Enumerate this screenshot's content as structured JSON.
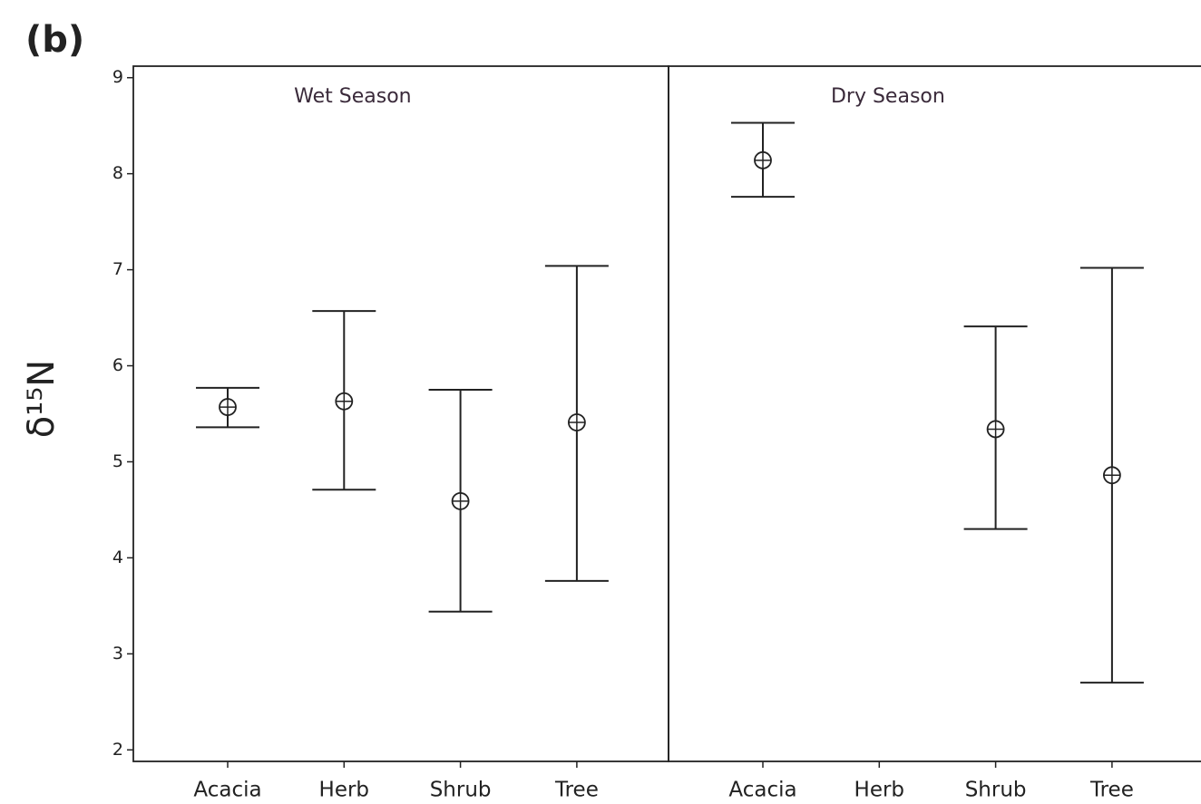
{
  "chart_data": {
    "type": "errorbar",
    "title": "(b)",
    "ylabel": "δ¹⁵N",
    "ylim": [
      1.88,
      9.12
    ],
    "yticks": [
      2,
      3,
      4,
      5,
      6,
      7,
      8,
      9
    ],
    "color": "#222222",
    "panels": [
      {
        "title": "Wet Season",
        "categories": [
          "Acacia",
          "Herb",
          "Shrub",
          "Tree"
        ],
        "values": [
          5.57,
          5.63,
          4.59,
          5.41
        ],
        "lower": [
          5.36,
          4.71,
          3.44,
          3.76
        ],
        "upper": [
          5.77,
          6.57,
          5.75,
          7.04
        ]
      },
      {
        "title": "Dry Season",
        "categories": [
          "Acacia",
          "Herb",
          "Shrub",
          "Tree"
        ],
        "values": [
          8.14,
          null,
          5.34,
          4.86
        ],
        "lower": [
          7.76,
          null,
          4.3,
          2.7
        ],
        "upper": [
          8.53,
          null,
          6.41,
          7.02
        ]
      }
    ]
  }
}
